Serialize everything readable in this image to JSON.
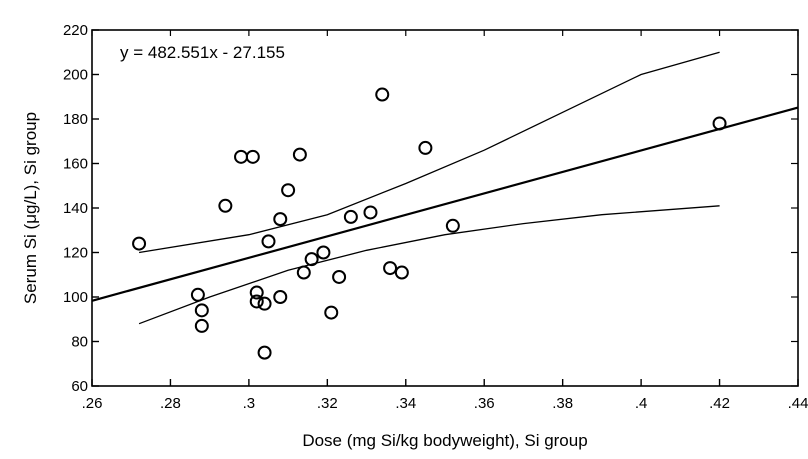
{
  "chart_data": {
    "type": "scatter",
    "xlabel": "Dose (mg Si/kg bodyweight), Si group",
    "ylabel": "Serum Si (μg/L), Si group",
    "annotation": "y = 482.551x - 27.155",
    "xlim": [
      0.26,
      0.44
    ],
    "ylim": [
      60,
      220
    ],
    "x_ticks": [
      0.26,
      0.28,
      0.3,
      0.32,
      0.34,
      0.36,
      0.38,
      0.4,
      0.42,
      0.44
    ],
    "x_tick_labels": [
      ".26",
      ".28",
      ".3",
      ".32",
      ".34",
      ".36",
      ".38",
      ".4",
      ".42",
      ".44"
    ],
    "y_ticks": [
      60,
      80,
      100,
      120,
      140,
      160,
      180,
      200,
      220
    ],
    "y_tick_labels": [
      "60",
      "80",
      "100",
      "120",
      "140",
      "160",
      "180",
      "200",
      "220"
    ],
    "grid": false,
    "points": [
      {
        "x": 0.272,
        "y": 124
      },
      {
        "x": 0.287,
        "y": 101
      },
      {
        "x": 0.288,
        "y": 94
      },
      {
        "x": 0.288,
        "y": 87
      },
      {
        "x": 0.294,
        "y": 141
      },
      {
        "x": 0.298,
        "y": 163
      },
      {
        "x": 0.301,
        "y": 163
      },
      {
        "x": 0.302,
        "y": 102
      },
      {
        "x": 0.302,
        "y": 98
      },
      {
        "x": 0.304,
        "y": 97
      },
      {
        "x": 0.304,
        "y": 75
      },
      {
        "x": 0.305,
        "y": 125
      },
      {
        "x": 0.308,
        "y": 100
      },
      {
        "x": 0.308,
        "y": 135
      },
      {
        "x": 0.31,
        "y": 148
      },
      {
        "x": 0.313,
        "y": 164
      },
      {
        "x": 0.314,
        "y": 111
      },
      {
        "x": 0.316,
        "y": 117
      },
      {
        "x": 0.319,
        "y": 120
      },
      {
        "x": 0.321,
        "y": 93
      },
      {
        "x": 0.323,
        "y": 109
      },
      {
        "x": 0.326,
        "y": 136
      },
      {
        "x": 0.331,
        "y": 138
      },
      {
        "x": 0.334,
        "y": 191
      },
      {
        "x": 0.336,
        "y": 113
      },
      {
        "x": 0.339,
        "y": 111
      },
      {
        "x": 0.345,
        "y": 167
      },
      {
        "x": 0.352,
        "y": 132
      },
      {
        "x": 0.42,
        "y": 178
      }
    ],
    "regression": {
      "slope": 482.551,
      "intercept": -27.155,
      "x_range": [
        0.26,
        0.44
      ]
    },
    "confidence_band": {
      "upper": [
        [
          0.272,
          120
        ],
        [
          0.3,
          128
        ],
        [
          0.32,
          137
        ],
        [
          0.34,
          151
        ],
        [
          0.36,
          166
        ],
        [
          0.38,
          183
        ],
        [
          0.4,
          200
        ],
        [
          0.42,
          210
        ]
      ],
      "lower": [
        [
          0.272,
          88
        ],
        [
          0.29,
          100
        ],
        [
          0.31,
          112
        ],
        [
          0.33,
          121
        ],
        [
          0.35,
          128
        ],
        [
          0.37,
          133
        ],
        [
          0.39,
          137
        ],
        [
          0.42,
          141
        ]
      ]
    }
  }
}
